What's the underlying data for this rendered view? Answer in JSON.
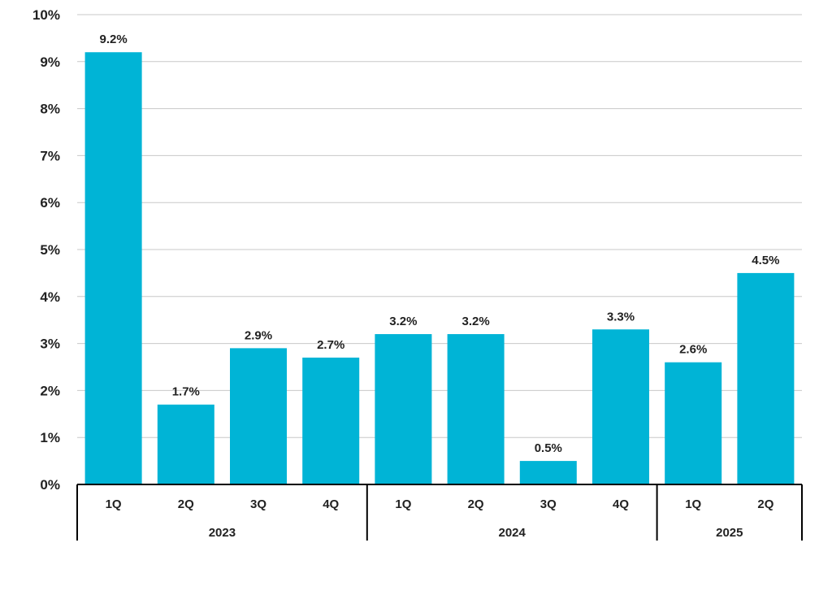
{
  "chart_data": {
    "type": "bar",
    "title": "",
    "xlabel": "",
    "ylabel": "",
    "ylim": [
      0,
      10
    ],
    "yticks": [
      "0%",
      "1%",
      "2%",
      "3%",
      "4%",
      "5%",
      "6%",
      "7%",
      "8%",
      "9%",
      "10%"
    ],
    "grid": true,
    "categories": [
      "1Q",
      "2Q",
      "3Q",
      "4Q",
      "1Q",
      "2Q",
      "3Q",
      "4Q",
      "1Q",
      "2Q"
    ],
    "groups": [
      {
        "label": "2023",
        "count": 4
      },
      {
        "label": "2024",
        "count": 4
      },
      {
        "label": "2025",
        "count": 2
      }
    ],
    "values": [
      9.2,
      1.7,
      2.9,
      2.7,
      3.2,
      3.2,
      0.5,
      3.3,
      2.6,
      4.5
    ],
    "data_labels": [
      "9.2%",
      "1.7%",
      "2.9%",
      "2.7%",
      "3.2%",
      "3.2%",
      "0.5%",
      "3.3%",
      "2.6%",
      "4.5%"
    ],
    "bar_color": "#00b4d6"
  }
}
